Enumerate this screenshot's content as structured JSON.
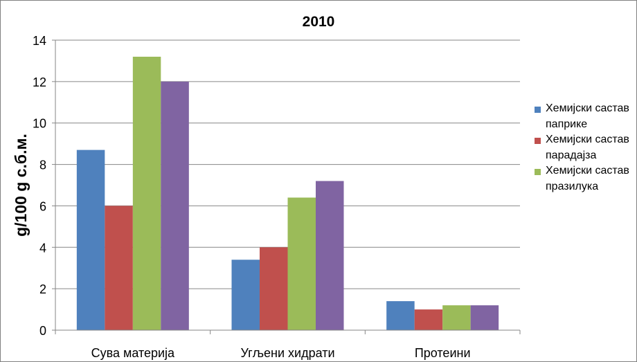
{
  "chart_data": {
    "type": "bar",
    "title": "2010",
    "xlabel": "",
    "ylabel": "g/100 g с.б.м.",
    "ylim": [
      0,
      14
    ],
    "yticks": [
      0,
      2,
      4,
      6,
      8,
      10,
      12,
      14
    ],
    "grid": true,
    "legend_position": "right",
    "categories": [
      "Сува материја",
      "Угљени хидрати",
      "Протеини"
    ],
    "series": [
      {
        "name": "Хемијски састав паприке",
        "color": "#4f81bd",
        "values": [
          8.7,
          3.4,
          1.4
        ]
      },
      {
        "name": "Хемијски састав парадајза",
        "color": "#c0504d",
        "values": [
          6.0,
          4.0,
          1.0
        ]
      },
      {
        "name": "Хемијски састав празилука",
        "color": "#9bbb59",
        "values": [
          13.2,
          6.4,
          1.2
        ]
      },
      {
        "name": "",
        "color": "#8064a2",
        "values": [
          12.0,
          7.2,
          1.2
        ]
      }
    ]
  }
}
